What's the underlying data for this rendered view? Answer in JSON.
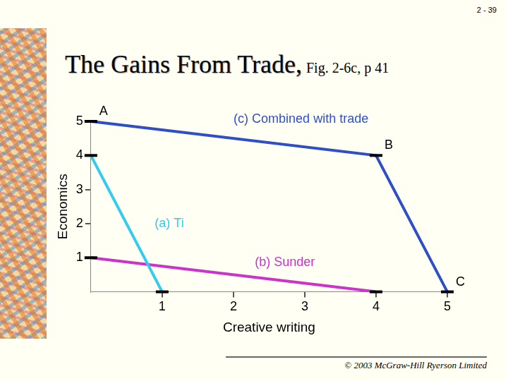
{
  "page": {
    "number": "2 - 39",
    "footer": "© 2003 McGraw-Hill Ryerson Limited"
  },
  "chart_data": {
    "type": "line",
    "title": "The Gains From Trade,",
    "subtitle": "Fig. 2-6c, p 41",
    "x_label": "Creative writing",
    "y_label": "Economics",
    "xlim": [
      0,
      5
    ],
    "ylim": [
      0,
      5
    ],
    "xticks": [
      1,
      2,
      3,
      4,
      5
    ],
    "yticks": [
      1,
      2,
      3,
      4,
      5
    ],
    "grid": false,
    "marker": "dash",
    "line_style": "solid",
    "series": [
      {
        "name": "(a) Ti",
        "color": "#33ccee",
        "x": [
          0,
          1
        ],
        "values": [
          4,
          0
        ]
      },
      {
        "name": "(b) Sunder",
        "color": "#cc33cc",
        "x": [
          0,
          4
        ],
        "values": [
          1,
          0
        ]
      },
      {
        "name": "(c) Combined with trade",
        "color": "#2f4fc8",
        "x": [
          0,
          4,
          5
        ],
        "values": [
          5,
          4,
          0
        ],
        "point_labels": [
          "A",
          "B",
          "C"
        ]
      }
    ]
  }
}
